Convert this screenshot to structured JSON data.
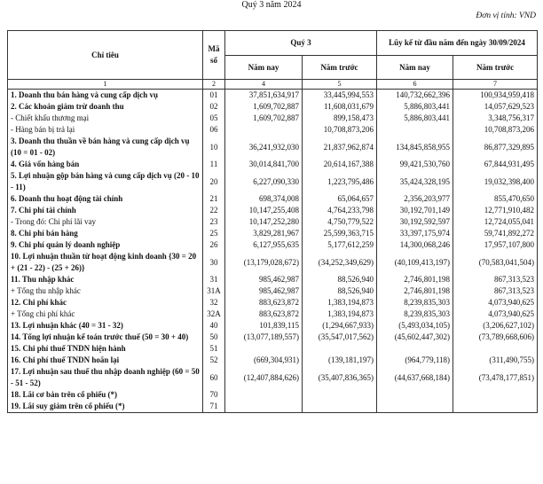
{
  "header": {
    "title": "Quý 3 năm 2024",
    "unit": "Đơn vị tính: VND"
  },
  "table": {
    "columns": {
      "item": "Chỉ tiêu",
      "code": "Mã số",
      "quarter": "Quý 3",
      "ytd": "Lũy kế từ đầu năm đến ngày 30/09/2024",
      "sub": [
        "Năm nay",
        "Năm trước",
        "Năm nay",
        "Năm trước"
      ],
      "index": [
        "1",
        "2",
        "4",
        "5",
        "6",
        "7"
      ]
    },
    "rows": [
      {
        "label": "1. Doanh thu bán hàng và cung cấp dịch vụ",
        "code": "01",
        "values": [
          "37,851,634,917",
          "33,445,994,553",
          "140,732,662,396",
          "100,934,959,418"
        ],
        "bold": true
      },
      {
        "label": "2. Các khoản giảm trừ doanh thu",
        "code": "02",
        "values": [
          "1,609,702,887",
          "11,608,031,679",
          "5,886,803,441",
          "14,057,629,523"
        ],
        "bold": true
      },
      {
        "label": "- Chiết khấu thương mại",
        "code": "05",
        "values": [
          "1,609,702,887",
          "899,158,473",
          "5,886,803,441",
          "3,348,756,317"
        ],
        "bold": false
      },
      {
        "label": "- Hàng bán bị trả lại",
        "code": "06",
        "values": [
          null,
          "10,708,873,206",
          null,
          "10,708,873,206"
        ],
        "bold": false
      },
      {
        "label": "3. Doanh thu thuần về bán hàng và cung cấp dịch vụ (10 = 01 - 02)",
        "code": "10",
        "values": [
          "36,241,932,030",
          "21,837,962,874",
          "134,845,858,955",
          "86,877,329,895"
        ],
        "bold": true
      },
      {
        "label": "4. Giá vốn hàng bán",
        "code": "11",
        "values": [
          "30,014,841,700",
          "20,614,167,388",
          "99,421,530,760",
          "67,844,931,495"
        ],
        "bold": true
      },
      {
        "label": "5. Lợi nhuận gộp bán hàng và cung cấp dịch vụ (20 - 10 - 11)",
        "code": "20",
        "values": [
          "6,227,090,330",
          "1,223,795,486",
          "35,424,328,195",
          "19,032,398,400"
        ],
        "bold": true
      },
      {
        "label": "6. Doanh thu hoạt động tài chính",
        "code": "21",
        "values": [
          "698,374,008",
          "65,064,657",
          "2,356,203,977",
          "855,470,650"
        ],
        "bold": true
      },
      {
        "label": "7. Chi phí tài chính",
        "code": "22",
        "values": [
          "10,147,255,408",
          "4,764,233,798",
          "30,192,701,149",
          "12,771,910,482"
        ],
        "bold": true
      },
      {
        "label": "- Trong đó: Chi phí lãi vay",
        "code": "23",
        "values": [
          "10,147,252,280",
          "4,750,779,522",
          "30,192,592,597",
          "12,724,055,041"
        ],
        "bold": false
      },
      {
        "label": "8. Chi phí bán hàng",
        "code": "25",
        "values": [
          "3,829,281,967",
          "25,599,363,715",
          "33,397,175,974",
          "59,741,892,272"
        ],
        "bold": true
      },
      {
        "label": "9. Chi phí quản lý doanh nghiệp",
        "code": "26",
        "values": [
          "6,127,955,635",
          "5,177,612,259",
          "14,300,068,246",
          "17,957,107,800"
        ],
        "bold": true
      },
      {
        "label": "10. Lợi nhuận thuần từ hoạt động kinh doanh {30 = 20 + (21 - 22) - (25 + 26)}",
        "code": "30",
        "values": [
          "(13,179,028,672)",
          "(34,252,349,629)",
          "(40,109,413,197)",
          "(70,583,041,504)"
        ],
        "bold": true
      },
      {
        "label": "11. Thu nhập khác",
        "code": "31",
        "values": [
          "985,462,987",
          "88,526,940",
          "2,746,801,198",
          "867,313,523"
        ],
        "bold": true
      },
      {
        "label": "+ Tổng thu nhập khác",
        "code": "31A",
        "values": [
          "985,462,987",
          "88,526,940",
          "2,746,801,198",
          "867,313,523"
        ],
        "bold": false
      },
      {
        "label": "12. Chi phí khác",
        "code": "32",
        "values": [
          "883,623,872",
          "1,383,194,873",
          "8,239,835,303",
          "4,073,940,625"
        ],
        "bold": true
      },
      {
        "label": "+ Tổng chi phí khác",
        "code": "32A",
        "values": [
          "883,623,872",
          "1,383,194,873",
          "8,239,835,303",
          "4,073,940,625"
        ],
        "bold": false
      },
      {
        "label": "13. Lợi nhuận khác (40 = 31 - 32)",
        "code": "40",
        "values": [
          "101,839,115",
          "(1,294,667,933)",
          "(5,493,034,105)",
          "(3,206,627,102)"
        ],
        "bold": true
      },
      {
        "label": "14. Tổng lợi nhuận kế toán trước thuế (50 = 30 + 40)",
        "code": "50",
        "values": [
          "(13,077,189,557)",
          "(35,547,017,562)",
          "(45,602,447,302)",
          "(73,789,668,606)"
        ],
        "bold": true
      },
      {
        "label": "15. Chi phí thuế TNDN hiện hành",
        "code": "51",
        "values": [
          null,
          null,
          null,
          null
        ],
        "bold": true
      },
      {
        "label": "16. Chi phí thuế TNDN hoãn lại",
        "code": "52",
        "values": [
          "(669,304,931)",
          "(139,181,197)",
          "(964,779,118)",
          "(311,490,755)"
        ],
        "bold": true
      },
      {
        "label": "17. Lợi nhuận sau thuế thu nhập doanh nghiệp (60 = 50 - 51 - 52)",
        "code": "60",
        "values": [
          "(12,407,884,626)",
          "(35,407,836,365)",
          "(44,637,668,184)",
          "(73,478,177,851)"
        ],
        "bold": true
      },
      {
        "label": "18. Lãi cơ bản trên cổ phiếu (*)",
        "code": "70",
        "values": [
          null,
          null,
          null,
          null
        ],
        "bold": true
      },
      {
        "label": "19. Lãi suy giảm trên cổ phiếu (*)",
        "code": "71",
        "values": [
          null,
          null,
          null,
          null
        ],
        "bold": true
      }
    ]
  }
}
